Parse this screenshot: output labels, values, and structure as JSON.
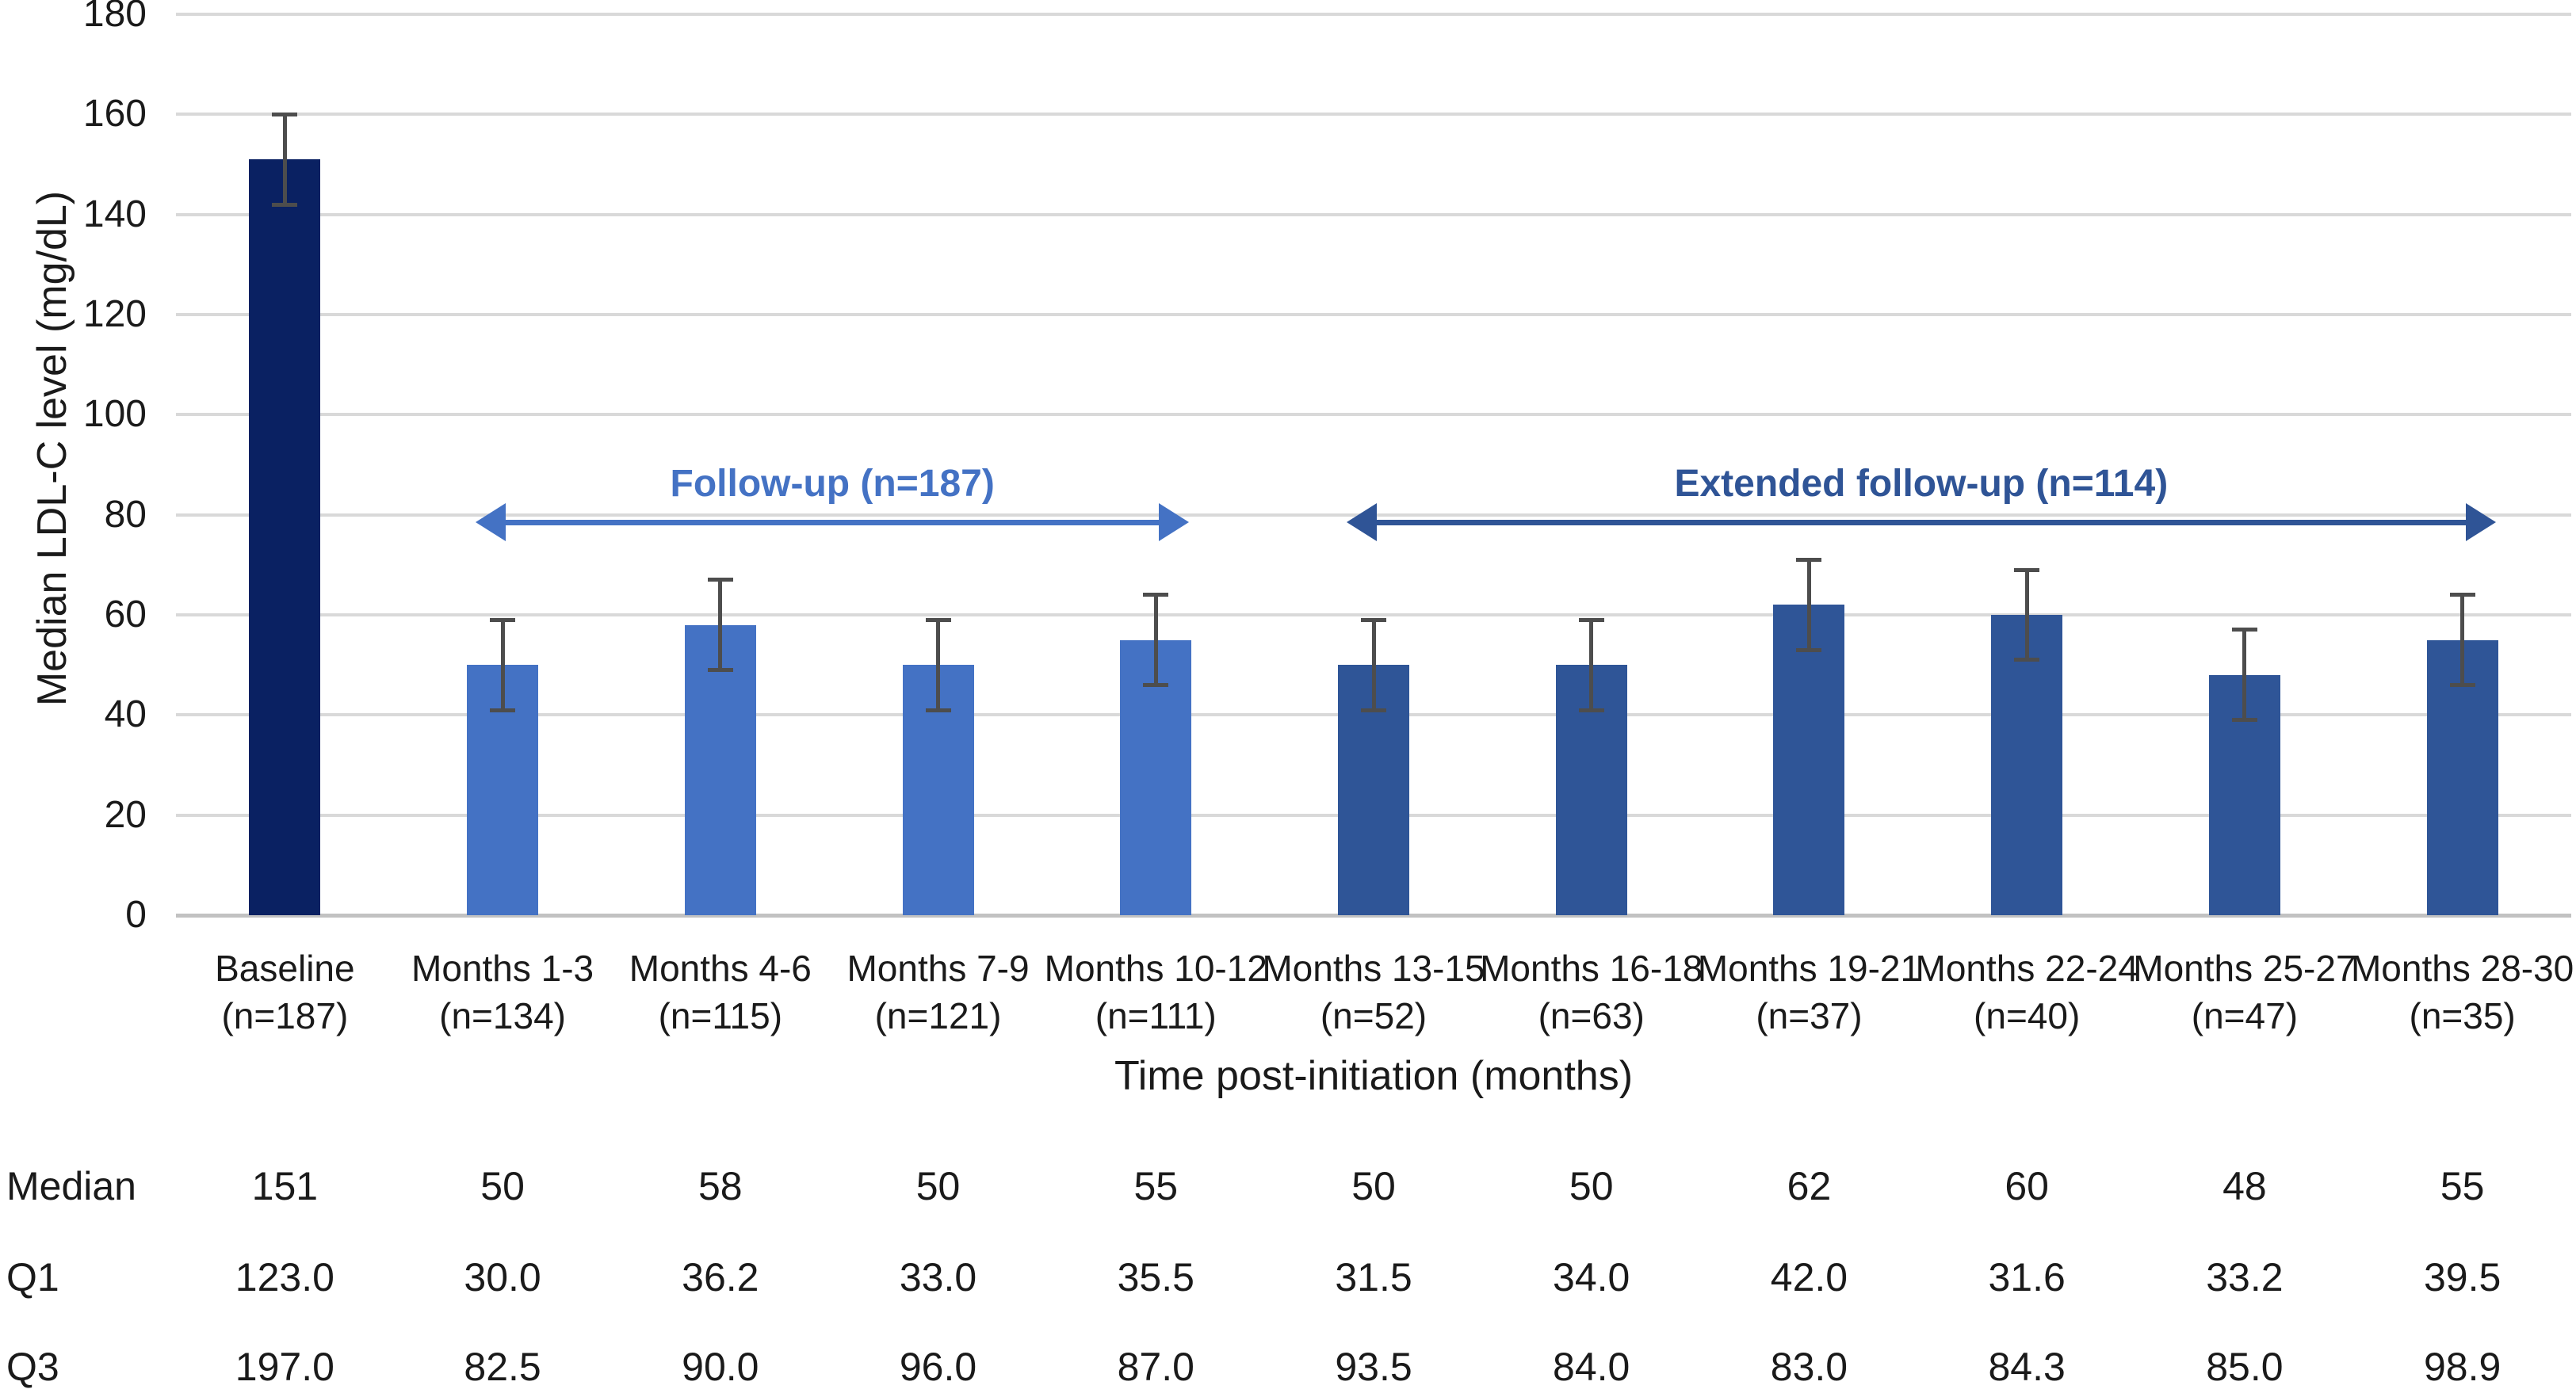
{
  "chart_data": {
    "type": "bar",
    "title": "",
    "ylabel": "Median LDL-C level (mg/dL)",
    "xlabel": "Time post-initiation (months)",
    "ylim": [
      0,
      180
    ],
    "yticks": [
      0,
      20,
      40,
      60,
      80,
      100,
      120,
      140,
      160,
      180
    ],
    "grid": true,
    "legend": false,
    "categories": [
      "Baseline",
      "Months 1-3",
      "Months 4-6",
      "Months 7-9",
      "Months 10-12",
      "Months 13-15",
      "Months 16-18",
      "Months 19-21",
      "Months 22-24",
      "Months 25-27",
      "Months 28-30"
    ],
    "category_sublabels": [
      "(n=187)",
      "(n=134)",
      "(n=115)",
      "(n=121)",
      "(n=111)",
      "(n=52)",
      "(n=63)",
      "(n=37)",
      "(n=40)",
      "(n=47)",
      "(n=35)"
    ],
    "series": [
      {
        "name": "Median LDL-C level",
        "values": [
          151,
          50,
          58,
          50,
          55,
          50,
          50,
          62,
          60,
          48,
          55
        ],
        "whisker_low": [
          142,
          41,
          49,
          41,
          46,
          41,
          41,
          53,
          51,
          39,
          46
        ],
        "whisker_high": [
          160,
          59,
          67,
          59,
          64,
          59,
          59,
          71,
          69,
          57,
          64
        ],
        "bar_colors": [
          "#0A2162",
          "#4472C4",
          "#4472C4",
          "#4472C4",
          "#4472C4",
          "#2F5597",
          "#2F5597",
          "#2F5597",
          "#2F5597",
          "#2F5597",
          "#2F5597"
        ]
      }
    ],
    "annotations": [
      {
        "label": "Follow-up (n=187)",
        "from_category": 1,
        "to_category": 4,
        "y_value": 78.5,
        "color": "#4472C4"
      },
      {
        "label": "Extended follow-up (n=114)",
        "from_category": 5,
        "to_category": 10,
        "y_value": 78.5,
        "color": "#2F5496"
      }
    ],
    "table": {
      "rows": [
        {
          "label": "Median",
          "values": [
            "151",
            "50",
            "58",
            "50",
            "55",
            "50",
            "50",
            "62",
            "60",
            "48",
            "55"
          ]
        },
        {
          "label": "Q1",
          "values": [
            "123.0",
            "30.0",
            "36.2",
            "33.0",
            "35.5",
            "31.5",
            "34.0",
            "42.0",
            "31.6",
            "33.2",
            "39.5"
          ]
        },
        {
          "label": "Q3",
          "values": [
            "197.0",
            "82.5",
            "90.0",
            "96.0",
            "87.0",
            "93.5",
            "84.0",
            "83.0",
            "84.3",
            "85.0",
            "98.9"
          ]
        }
      ]
    },
    "colors": {
      "baseline_bar": "#0A2162",
      "followup_bar": "#4472C4",
      "extended_bar": "#2F5597",
      "followup_annotation": "#4472C4",
      "extended_annotation": "#2F5496",
      "error_bar": "#4D4D4D",
      "gridline": "#D9D9D9",
      "axis_line": "#C2C2C2",
      "text": "#1A1A1A",
      "background": "#FFFFFF"
    }
  }
}
